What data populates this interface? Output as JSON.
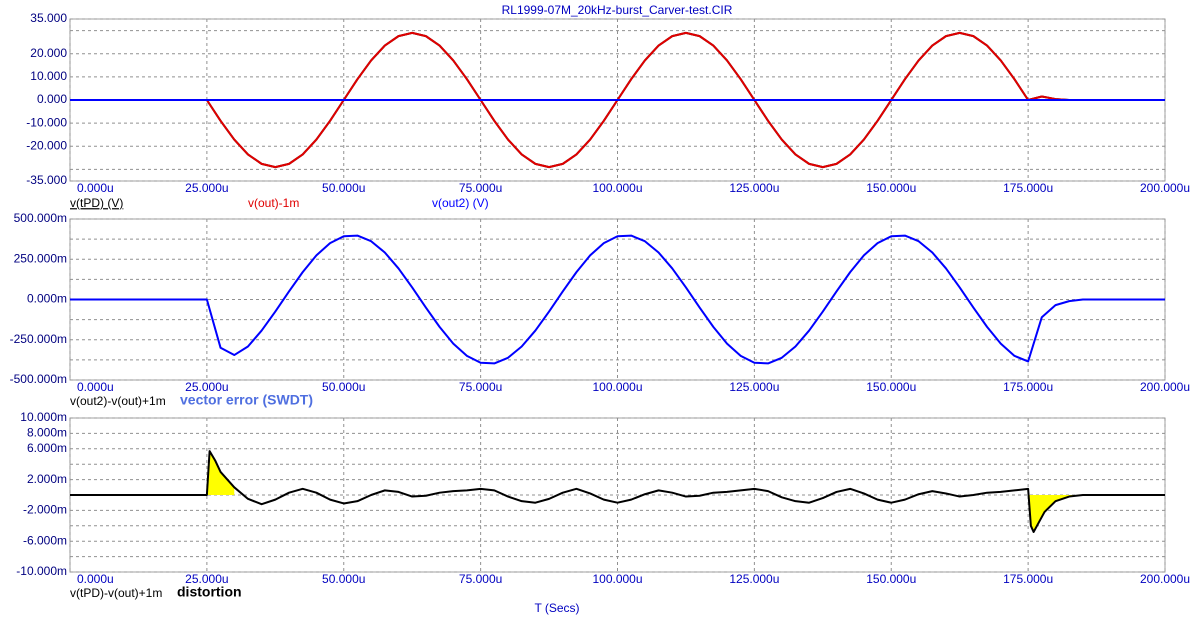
{
  "chart_data": [
    {
      "type": "line",
      "title": "RL1999-07M_20kHz-burst_Carver-test.CIR",
      "x": [
        0,
        2.5,
        5,
        7.5,
        10,
        12.5,
        15,
        17.5,
        20,
        22.5,
        25,
        27.5,
        30,
        32.5,
        35,
        37.5,
        40,
        42.5,
        45,
        47.5,
        50,
        52.5,
        55,
        57.5,
        60,
        62.5,
        65,
        67.5,
        70,
        72.5,
        75,
        77.5,
        80,
        82.5,
        85,
        87.5,
        90,
        92.5,
        95,
        97.5,
        100,
        102.5,
        105,
        107.5,
        110,
        112.5,
        115,
        117.5,
        120,
        122.5,
        125,
        127.5,
        130,
        132.5,
        135,
        137.5,
        140,
        142.5,
        145,
        147.5,
        150,
        152.5,
        155,
        157.5,
        160,
        162.5,
        165,
        167.5,
        170,
        172.5,
        175,
        177.5,
        180,
        182.5,
        185,
        187.5,
        190,
        192.5,
        195,
        197.5,
        200
      ],
      "xlim": [
        0,
        200
      ],
      "xticks": [
        {
          "value": 0,
          "label": "0.000u"
        },
        {
          "value": 25,
          "label": "25.000u"
        },
        {
          "value": 50,
          "label": "50.000u"
        },
        {
          "value": 75,
          "label": "75.000u"
        },
        {
          "value": 100,
          "label": "100.000u"
        },
        {
          "value": 125,
          "label": "125.000u"
        },
        {
          "value": 150,
          "label": "150.000u"
        },
        {
          "value": 175,
          "label": "175.000u"
        },
        {
          "value": 200,
          "label": "200.000u"
        }
      ],
      "ylim": [
        -35,
        35
      ],
      "yticks": [
        {
          "value": 35,
          "label": "35.000"
        },
        {
          "value": 20,
          "label": "20.000"
        },
        {
          "value": 10,
          "label": "10.000"
        },
        {
          "value": 0,
          "label": "0.000"
        },
        {
          "value": -10,
          "label": "-10.000"
        },
        {
          "value": -20,
          "label": "-20.000"
        },
        {
          "value": -35,
          "label": "-35.000"
        }
      ],
      "ygrid_minor": [
        30,
        -30
      ],
      "grid": true,
      "series": [
        {
          "name": "v(tPD) (V)",
          "color": "#000000",
          "label_color": "#000000",
          "values": [
            0,
            0,
            0,
            0,
            0,
            0,
            0,
            0,
            0,
            0,
            0,
            -9.0,
            -17.1,
            -23.5,
            -27.6,
            -29,
            -27.6,
            -23.5,
            -17.1,
            -9.0,
            0,
            9.0,
            17.1,
            23.5,
            27.6,
            29,
            27.6,
            23.5,
            17.1,
            9.0,
            0,
            -9.0,
            -17.1,
            -23.5,
            -27.6,
            -29,
            -27.6,
            -23.5,
            -17.1,
            -9.0,
            0,
            9.0,
            17.1,
            23.5,
            27.6,
            29,
            27.6,
            23.5,
            17.1,
            9.0,
            0,
            -9.0,
            -17.1,
            -23.5,
            -27.6,
            -29,
            -27.6,
            -23.5,
            -17.1,
            -9.0,
            0,
            9.0,
            17.1,
            23.5,
            27.6,
            29,
            27.6,
            23.5,
            17.1,
            9.0,
            0,
            1.5,
            0.4,
            0,
            0,
            0,
            0,
            0,
            0,
            0,
            0
          ]
        },
        {
          "name": "v(out)-1m",
          "color": "#e00000",
          "label_color": "#e00000",
          "values": [
            0,
            0,
            0,
            0,
            0,
            0,
            0,
            0,
            0,
            0,
            0,
            -9.0,
            -17.1,
            -23.5,
            -27.6,
            -29,
            -27.6,
            -23.5,
            -17.1,
            -9.0,
            0,
            9.0,
            17.1,
            23.5,
            27.6,
            29,
            27.6,
            23.5,
            17.1,
            9.0,
            0,
            -9.0,
            -17.1,
            -23.5,
            -27.6,
            -29,
            -27.6,
            -23.5,
            -17.1,
            -9.0,
            0,
            9.0,
            17.1,
            23.5,
            27.6,
            29,
            27.6,
            23.5,
            17.1,
            9.0,
            0,
            -9.0,
            -17.1,
            -23.5,
            -27.6,
            -29,
            -27.6,
            -23.5,
            -17.1,
            -9.0,
            0,
            9.0,
            17.1,
            23.5,
            27.6,
            29,
            27.6,
            23.5,
            17.1,
            9.0,
            0,
            1.5,
            0.4,
            0,
            0,
            0,
            0,
            0,
            0,
            0,
            0
          ]
        },
        {
          "name": "v(out2) (V)",
          "color": "#0000ff",
          "label_color": "#0000ff",
          "values": [
            0,
            0,
            0,
            0,
            0,
            0,
            0,
            0,
            0,
            0,
            0,
            0,
            0,
            0,
            0,
            0,
            0,
            0,
            0,
            0,
            0,
            0,
            0,
            0,
            0,
            0,
            0,
            0,
            0,
            0,
            0,
            0,
            0,
            0,
            0,
            0,
            0,
            0,
            0,
            0,
            0,
            0,
            0,
            0,
            0,
            0,
            0,
            0,
            0,
            0,
            0,
            0,
            0,
            0,
            0,
            0,
            0,
            0,
            0,
            0,
            0,
            0,
            0,
            0,
            0,
            0,
            0,
            0,
            0,
            0,
            0,
            0,
            0,
            0,
            0,
            0,
            0,
            0,
            0,
            0,
            0
          ]
        }
      ]
    },
    {
      "type": "line",
      "x": [
        0,
        2.5,
        5,
        7.5,
        10,
        12.5,
        15,
        17.5,
        20,
        22.5,
        25,
        27.5,
        30,
        32.5,
        35,
        37.5,
        40,
        42.5,
        45,
        47.5,
        50,
        52.5,
        55,
        57.5,
        60,
        62.5,
        65,
        67.5,
        70,
        72.5,
        75,
        77.5,
        80,
        82.5,
        85,
        87.5,
        90,
        92.5,
        95,
        97.5,
        100,
        102.5,
        105,
        107.5,
        110,
        112.5,
        115,
        117.5,
        120,
        122.5,
        125,
        127.5,
        130,
        132.5,
        135,
        137.5,
        140,
        142.5,
        145,
        147.5,
        150,
        152.5,
        155,
        157.5,
        160,
        162.5,
        165,
        167.5,
        170,
        172.5,
        175,
        177.5,
        180,
        182.5,
        185,
        187.5,
        190,
        192.5,
        195,
        197.5,
        200
      ],
      "xlim": [
        0,
        200
      ],
      "xticks": [
        {
          "value": 0,
          "label": "0.000u"
        },
        {
          "value": 25,
          "label": "25.000u"
        },
        {
          "value": 50,
          "label": "50.000u"
        },
        {
          "value": 75,
          "label": "75.000u"
        },
        {
          "value": 100,
          "label": "100.000u"
        },
        {
          "value": 125,
          "label": "125.000u"
        },
        {
          "value": 150,
          "label": "150.000u"
        },
        {
          "value": 175,
          "label": "175.000u"
        },
        {
          "value": 200,
          "label": "200.000u"
        }
      ],
      "ylim": [
        -500,
        500
      ],
      "yticks": [
        {
          "value": 500,
          "label": "500.000m"
        },
        {
          "value": 250,
          "label": "250.000m"
        },
        {
          "value": 0,
          "label": "0.000m"
        },
        {
          "value": -250,
          "label": "-250.000m"
        },
        {
          "value": -500,
          "label": "-500.000m"
        }
      ],
      "ygrid_minor": [
        375,
        125,
        -125,
        -375
      ],
      "grid": true,
      "annotation": "vector error (SWDT)",
      "annotation_color": "#4f6fe0",
      "series": [
        {
          "name": "v(out2)-v(out)+1m",
          "color": "#0000ff",
          "label_color": "#000000",
          "values": [
            0,
            0,
            0,
            0,
            0,
            0,
            0,
            0,
            0,
            0,
            0,
            -300,
            -345,
            -292,
            -193,
            -75,
            50,
            170,
            274,
            350,
            393,
            397,
            362,
            292,
            193,
            75,
            -50,
            -170,
            -274,
            -350,
            -393,
            -397,
            -362,
            -292,
            -193,
            -75,
            50,
            170,
            274,
            350,
            393,
            397,
            362,
            292,
            193,
            75,
            -50,
            -170,
            -274,
            -350,
            -393,
            -397,
            -362,
            -292,
            -193,
            -75,
            50,
            170,
            274,
            350,
            393,
            397,
            362,
            292,
            193,
            75,
            -50,
            -170,
            -274,
            -350,
            -385,
            -110,
            -35,
            -10,
            0,
            0,
            0,
            0,
            0,
            0,
            0
          ]
        }
      ]
    },
    {
      "type": "line",
      "xlabel": "T (Secs)",
      "x": [
        0,
        2.5,
        5,
        7.5,
        10,
        12.5,
        15,
        17.5,
        20,
        22.5,
        25,
        25.5,
        26.5,
        27.5,
        30,
        32.5,
        35,
        37.5,
        40,
        42.5,
        45,
        47.5,
        50,
        52.5,
        55,
        57.5,
        60,
        62.5,
        65,
        67.5,
        70,
        72.5,
        75,
        77.5,
        80,
        82.5,
        85,
        87.5,
        90,
        92.5,
        95,
        97.5,
        100,
        102.5,
        105,
        107.5,
        110,
        112.5,
        115,
        117.5,
        120,
        122.5,
        125,
        127.5,
        130,
        132.5,
        135,
        137.5,
        140,
        142.5,
        145,
        147.5,
        150,
        152.5,
        155,
        157.5,
        160,
        162.5,
        165,
        167.5,
        170,
        172.5,
        175,
        175.5,
        176,
        177,
        178,
        180,
        182.5,
        185,
        190,
        200
      ],
      "xlim": [
        0,
        200
      ],
      "xticks": [
        {
          "value": 0,
          "label": "0.000u"
        },
        {
          "value": 25,
          "label": "25.000u"
        },
        {
          "value": 50,
          "label": "50.000u"
        },
        {
          "value": 75,
          "label": "75.000u"
        },
        {
          "value": 100,
          "label": "100.000u"
        },
        {
          "value": 125,
          "label": "125.000u"
        },
        {
          "value": 150,
          "label": "150.000u"
        },
        {
          "value": 175,
          "label": "175.000u"
        },
        {
          "value": 200,
          "label": "200.000u"
        }
      ],
      "ylim": [
        -10,
        10
      ],
      "yticks": [
        {
          "value": 10,
          "label": "10.000m"
        },
        {
          "value": 8,
          "label": "8.000m"
        },
        {
          "value": 6,
          "label": "6.000m"
        },
        {
          "value": 2,
          "label": "2.000m"
        },
        {
          "value": -2,
          "label": "-2.000m"
        },
        {
          "value": -6,
          "label": "-6.000m"
        },
        {
          "value": -10,
          "label": "-10.000m"
        }
      ],
      "ygrid_minor": [
        4,
        0,
        -4,
        -8
      ],
      "grid": true,
      "annotation": "distortion",
      "annotation_color": "#000000",
      "fill": {
        "color": "#ffff00",
        "xranges": [
          [
            25,
            30
          ],
          [
            175,
            185
          ]
        ]
      },
      "series": [
        {
          "name": "v(tPD)-v(out)+1m",
          "color": "#000000",
          "label_color": "#000000",
          "values": [
            0,
            0,
            0,
            0,
            0,
            0,
            0,
            0,
            0,
            0,
            0,
            5.7,
            4.5,
            3.0,
            1.0,
            -0.5,
            -1.2,
            -0.6,
            0.3,
            0.8,
            0.3,
            -0.6,
            -1.1,
            -0.8,
            0,
            0.6,
            0.4,
            -0.2,
            -0.1,
            0.3,
            0.5,
            0.6,
            0.8,
            0.6,
            -0.2,
            -0.8,
            -1.0,
            -0.5,
            0.3,
            0.8,
            0.2,
            -0.6,
            -1.0,
            -0.6,
            0.1,
            0.6,
            0.3,
            -0.2,
            -0.1,
            0.3,
            0.4,
            0.6,
            0.8,
            0.5,
            -0.3,
            -0.8,
            -1.0,
            -0.4,
            0.4,
            0.8,
            0.2,
            -0.6,
            -1.0,
            -0.6,
            0.1,
            0.5,
            0.2,
            -0.2,
            0,
            0.3,
            0.4,
            0.6,
            0.8,
            -4.0,
            -4.8,
            -3.5,
            -2.2,
            -0.8,
            -0.2,
            0,
            0,
            0
          ]
        }
      ]
    }
  ]
}
